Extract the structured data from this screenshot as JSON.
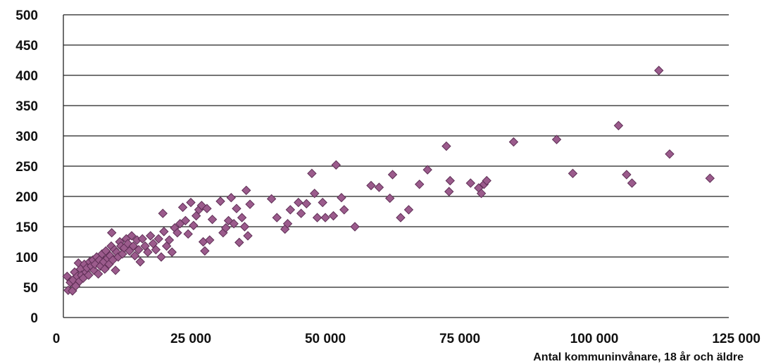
{
  "chart_data": {
    "type": "scatter",
    "title": "",
    "xlabel": "Antal kommuninvånare, 18 år och äldre",
    "ylabel": "",
    "xlim": [
      0,
      125000
    ],
    "ylim": [
      0,
      500
    ],
    "grid": "horizontal",
    "legend": "none",
    "x_ticks": [
      0,
      25000,
      50000,
      75000,
      100000,
      125000
    ],
    "x_tick_labels": [
      "0",
      "25 000",
      "50 000",
      "75 000",
      "100 000",
      "125 000"
    ],
    "y_ticks": [
      0,
      50,
      100,
      150,
      200,
      250,
      300,
      350,
      400,
      450,
      500
    ],
    "y_tick_labels": [
      "0",
      "50",
      "100",
      "150",
      "200",
      "250",
      "300",
      "350",
      "400",
      "450",
      "500"
    ],
    "colors": {
      "marker": "#9b5b8c",
      "marker_edge": "#5e2e55"
    },
    "points": [
      [
        2000,
        68
      ],
      [
        2200,
        45
      ],
      [
        2600,
        58
      ],
      [
        3000,
        44
      ],
      [
        3100,
        62
      ],
      [
        3400,
        75
      ],
      [
        3600,
        52
      ],
      [
        3900,
        68
      ],
      [
        4100,
        90
      ],
      [
        4300,
        60
      ],
      [
        4500,
        80
      ],
      [
        4700,
        70
      ],
      [
        5000,
        65
      ],
      [
        5200,
        88
      ],
      [
        5500,
        75
      ],
      [
        5700,
        82
      ],
      [
        6000,
        70
      ],
      [
        6200,
        92
      ],
      [
        6500,
        85
      ],
      [
        6800,
        95
      ],
      [
        7000,
        78
      ],
      [
        7200,
        88
      ],
      [
        7500,
        100
      ],
      [
        7800,
        72
      ],
      [
        8000,
        95
      ],
      [
        8200,
        85
      ],
      [
        8500,
        105
      ],
      [
        8800,
        92
      ],
      [
        9000,
        80
      ],
      [
        9200,
        110
      ],
      [
        9500,
        98
      ],
      [
        9800,
        88
      ],
      [
        10000,
        102
      ],
      [
        10200,
        118
      ],
      [
        10300,
        140
      ],
      [
        10500,
        95
      ],
      [
        10800,
        112
      ],
      [
        11000,
        78
      ],
      [
        11200,
        108
      ],
      [
        11500,
        100
      ],
      [
        11800,
        125
      ],
      [
        12000,
        118
      ],
      [
        12300,
        105
      ],
      [
        12600,
        115
      ],
      [
        13000,
        130
      ],
      [
        13300,
        122
      ],
      [
        13600,
        110
      ],
      [
        14000,
        135
      ],
      [
        14300,
        118
      ],
      [
        14600,
        102
      ],
      [
        15000,
        128
      ],
      [
        15300,
        112
      ],
      [
        15600,
        92
      ],
      [
        16000,
        130
      ],
      [
        16500,
        118
      ],
      [
        17000,
        108
      ],
      [
        17500,
        135
      ],
      [
        18000,
        122
      ],
      [
        18500,
        112
      ],
      [
        19000,
        130
      ],
      [
        19500,
        100
      ],
      [
        19800,
        172
      ],
      [
        20000,
        142
      ],
      [
        20500,
        118
      ],
      [
        21000,
        128
      ],
      [
        21500,
        108
      ],
      [
        22000,
        148
      ],
      [
        22500,
        140
      ],
      [
        23000,
        155
      ],
      [
        23500,
        182
      ],
      [
        24000,
        160
      ],
      [
        24500,
        138
      ],
      [
        25000,
        190
      ],
      [
        25500,
        152
      ],
      [
        26000,
        168
      ],
      [
        26500,
        178
      ],
      [
        27000,
        185
      ],
      [
        27300,
        125
      ],
      [
        27600,
        110
      ],
      [
        28000,
        180
      ],
      [
        28500,
        128
      ],
      [
        29000,
        162
      ],
      [
        30500,
        192
      ],
      [
        31000,
        140
      ],
      [
        31500,
        148
      ],
      [
        32000,
        160
      ],
      [
        32500,
        198
      ],
      [
        33000,
        155
      ],
      [
        33500,
        180
      ],
      [
        34000,
        124
      ],
      [
        34500,
        165
      ],
      [
        35000,
        150
      ],
      [
        35300,
        210
      ],
      [
        35600,
        135
      ],
      [
        36000,
        187
      ],
      [
        40000,
        196
      ],
      [
        41000,
        165
      ],
      [
        42500,
        146
      ],
      [
        43000,
        155
      ],
      [
        43500,
        178
      ],
      [
        45000,
        190
      ],
      [
        45500,
        172
      ],
      [
        46500,
        188
      ],
      [
        47500,
        238
      ],
      [
        48000,
        205
      ],
      [
        48500,
        165
      ],
      [
        49500,
        190
      ],
      [
        50000,
        165
      ],
      [
        51500,
        168
      ],
      [
        52000,
        252
      ],
      [
        53000,
        198
      ],
      [
        53500,
        178
      ],
      [
        55500,
        150
      ],
      [
        58500,
        218
      ],
      [
        60000,
        215
      ],
      [
        62000,
        197
      ],
      [
        62500,
        236
      ],
      [
        64000,
        165
      ],
      [
        65500,
        178
      ],
      [
        67500,
        220
      ],
      [
        69000,
        244
      ],
      [
        72500,
        283
      ],
      [
        73000,
        208
      ],
      [
        73200,
        226
      ],
      [
        77000,
        222
      ],
      [
        78500,
        214
      ],
      [
        79000,
        205
      ],
      [
        79500,
        220
      ],
      [
        80000,
        226
      ],
      [
        85000,
        290
      ],
      [
        93000,
        294
      ],
      [
        96000,
        238
      ],
      [
        104500,
        317
      ],
      [
        106000,
        236
      ],
      [
        107000,
        222
      ],
      [
        112000,
        408
      ],
      [
        114000,
        270
      ],
      [
        121500,
        230
      ]
    ]
  }
}
